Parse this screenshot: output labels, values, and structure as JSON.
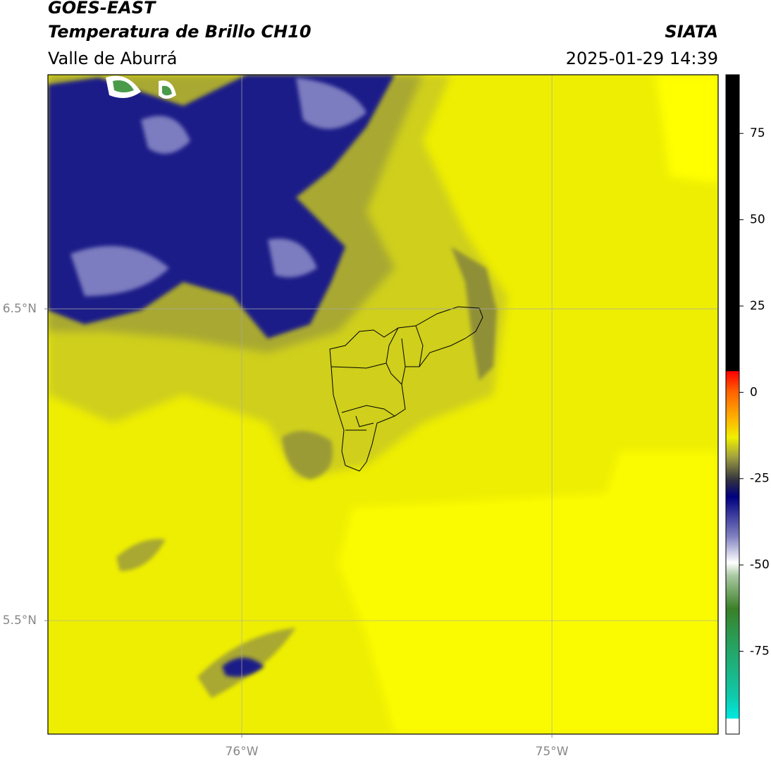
{
  "header": {
    "satellite": "GOES-EAST",
    "product": "Temperatura de Brillo CH10",
    "region": "Valle de Aburrá",
    "source": "SIATA",
    "datetime": "2025-01-29 14:39"
  },
  "map": {
    "lon_range": [
      -76.625,
      -74.464
    ],
    "lat_range": [
      5.136,
      7.251
    ],
    "lon_ticks": [
      {
        "value": -76,
        "label": "76°W"
      },
      {
        "value": -75,
        "label": "75°W"
      }
    ],
    "lat_ticks": [
      {
        "value": 6.5,
        "label": "6.5°N"
      },
      {
        "value": 5.5,
        "label": "5.5°N"
      }
    ],
    "grid": true
  },
  "colorbar": {
    "range": [
      -99,
      92
    ],
    "ticks": [
      75,
      50,
      25,
      0,
      -25,
      -50,
      -75
    ]
  }
}
